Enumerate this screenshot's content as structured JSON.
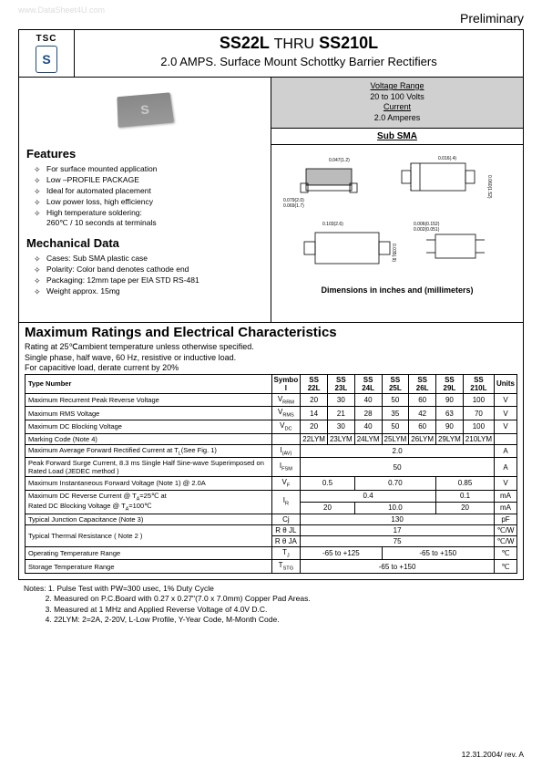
{
  "watermark": "www.DataSheet4U.com",
  "preliminary": "Preliminary",
  "logo": {
    "tsc": "TSC",
    "symbol": "S"
  },
  "title": {
    "main_pre": "SS22L",
    "thru": "THRU",
    "main_post": "SS210L",
    "sub": "2.0 AMPS. Surface Mount Schottky Barrier Rectifiers"
  },
  "chip_mark": "S",
  "spec_box": {
    "vr_label": "Voltage Range",
    "vr_val": "20 to 100 Volts",
    "cur_label": "Current",
    "cur_val": "2.0 Amperes"
  },
  "sub_sma": "Sub SMA",
  "dim_caption": "Dimensions in inches and (millimeters)",
  "features": {
    "h": "Features",
    "items": [
      "For surface mounted application",
      "Low –PROFILE PACKAGE",
      "Ideal for automated placement",
      "Low power loss, high efficiency",
      "High temperature soldering:\n260℃ / 10 seconds at terminals"
    ]
  },
  "mech": {
    "h": "Mechanical Data",
    "items": [
      "Cases: Sub SMA plastic case",
      "Polarity: Color band denotes cathode end",
      "Packaging: 12mm tape per EIA STD RS-481",
      "Weight approx. 15mg"
    ]
  },
  "ratings": {
    "h": "Maximum Ratings and Electrical Characteristics",
    "d1": "Rating at 25℃ambient temperature unless otherwise specified.",
    "d2": "Single phase, half wave, 60 Hz, resistive or inductive load.",
    "d3": "For capacitive load, derate current by 20%"
  },
  "table": {
    "headers": {
      "type": "Type Number",
      "symbol": "Symbo\nl",
      "units": "Units",
      "parts": [
        "SS\n22L",
        "SS\n23L",
        "SS\n24L",
        "SS\n25L",
        "SS\n26L",
        "SS\n29L",
        "SS\n210L"
      ]
    },
    "rows": [
      {
        "lbl": "Maximum Recurrent Peak Reverse Voltage",
        "sym": "V",
        "sub": "RRM",
        "vals": [
          "20",
          "30",
          "40",
          "50",
          "60",
          "90",
          "100"
        ],
        "unit": "V"
      },
      {
        "lbl": "Maximum RMS Voltage",
        "sym": "V",
        "sub": "RMS",
        "vals": [
          "14",
          "21",
          "28",
          "35",
          "42",
          "63",
          "70"
        ],
        "unit": "V"
      },
      {
        "lbl": "Maximum DC Blocking Voltage",
        "sym": "V",
        "sub": "DC",
        "vals": [
          "20",
          "30",
          "40",
          "50",
          "60",
          "90",
          "100"
        ],
        "unit": "V"
      },
      {
        "lbl": "Marking Code (Note 4)",
        "sym": "",
        "sub": "",
        "vals": [
          "22LYM",
          "23LYM",
          "24LYM",
          "25LYM",
          "26LYM",
          "29LYM",
          "210LYM"
        ],
        "unit": ""
      }
    ],
    "iav": {
      "lbl": "Maximum Average Forward Rectified Current at T",
      "sub_lbl": "L",
      "lbl2": "(See Fig. 1)",
      "sym": "I",
      "sub": "(AV)",
      "val": "2.0",
      "unit": "A"
    },
    "ifsm": {
      "lbl": "Peak Forward Surge Current, 8.3 ms Single Half Sine-wave Superimposed on Rated Load (JEDEC method )",
      "sym": "I",
      "sub": "FSM",
      "val": "50",
      "unit": "A"
    },
    "vf": {
      "lbl": "Maximum Instantaneous Forward Voltage (Note 1) @ 2.0A",
      "sym": "V",
      "sub": "F",
      "vals": [
        "0.5",
        "0.70",
        "0.85"
      ],
      "spans": [
        2,
        3,
        2
      ],
      "unit": "V"
    },
    "ir": {
      "lbl": "Maximum DC Reverse Current    @ T",
      "a25": "A",
      "eq25": "=25℃   at",
      "lbl2": "Rated DC Blocking Voltage    @ T",
      "eq100": "=100℃",
      "sym": "I",
      "sub": "R",
      "r1": [
        "0.4",
        "0.1"
      ],
      "r1spans": [
        5,
        2
      ],
      "r2": [
        "20",
        "10.0",
        "20"
      ],
      "r2spans": [
        2,
        3,
        2
      ],
      "unit1": "mA",
      "unit2": "mA"
    },
    "cj": {
      "lbl": "Typical Junction Capacitance (Note 3)",
      "sym": "Cj",
      "val": "130",
      "unit": "pF"
    },
    "rthermal": {
      "lbl": "Typical Thermal Resistance ( Note 2 )",
      "sym1": "R θ JL",
      "sym2": "R θ JA",
      "v1": "17",
      "v2": "75",
      "unit": "℃/W"
    },
    "tj": {
      "lbl": "Operating Temperature Range",
      "sym": "T",
      "sub": "J",
      "v1": "-65 to +125",
      "v2": "-65 to +150",
      "spans": [
        3,
        4
      ],
      "unit": "℃"
    },
    "tstg": {
      "lbl": "Storage Temperature Range",
      "sym": "T",
      "sub": "STG",
      "val": "-65 to +150",
      "unit": "℃"
    }
  },
  "notes": {
    "pre": "Notes:",
    "items": [
      "1. Pulse Test with PW=300 usec, 1% Duty Cycle",
      "2. Measured on P.C.Board with 0.27 x 0.27\"(7.0 x 7.0mm) Copper Pad Areas.",
      "3. Measured at 1 MHz and Applied Reverse Voltage of 4.0V D.C.",
      "4. 22LYM: 2=2A, 2-20V, L-Low Profile, Y-Year Code, M-Month Code."
    ]
  },
  "footer": "12.31.2004/ rev. A",
  "colors": {
    "border": "#000000",
    "logo": "#1a4a8a",
    "grey": "#d0d0d0",
    "text": "#000000",
    "bg": "#ffffff"
  }
}
